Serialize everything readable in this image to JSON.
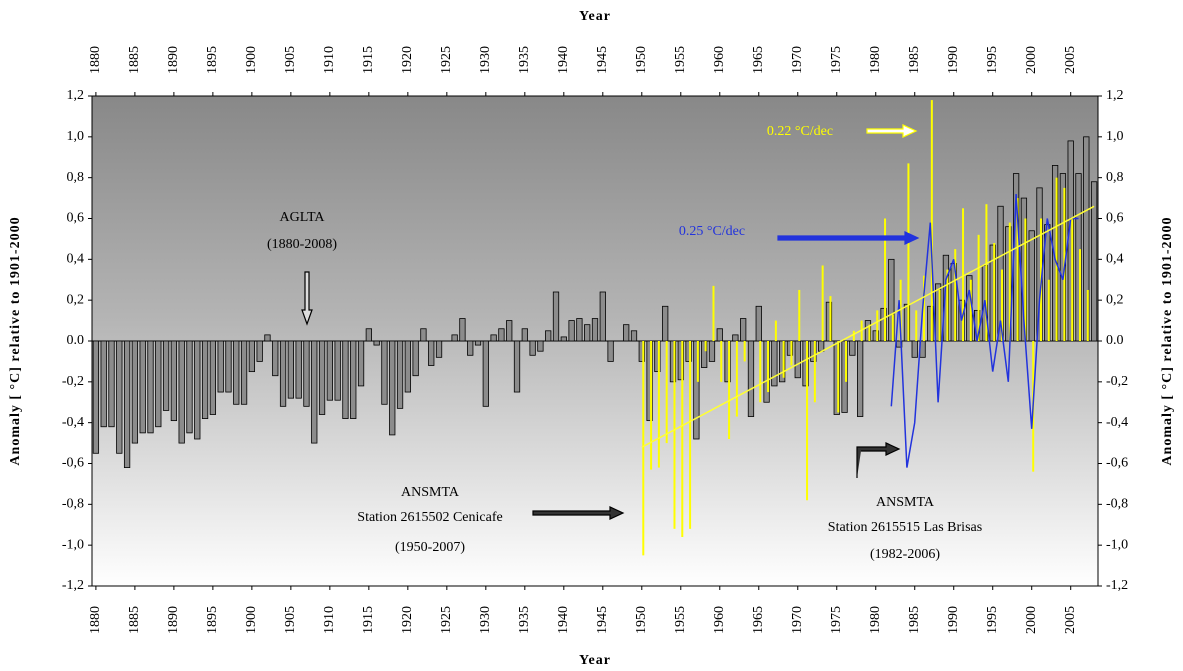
{
  "chart_data": {
    "type": "bar",
    "x_label": "Year",
    "x2_label": "Year",
    "y_label": "Anomaly [ °C] relative to 1901-2000",
    "y2_label": "Anomaly [ °C] relative to 1901-2000",
    "xlim": [
      1879.5,
      2008.5
    ],
    "xticks": [
      1880,
      1885,
      1890,
      1895,
      1900,
      1905,
      1910,
      1915,
      1920,
      1925,
      1930,
      1935,
      1940,
      1945,
      1950,
      1955,
      1960,
      1965,
      1970,
      1975,
      1980,
      1985,
      1990,
      1995,
      2000,
      2005
    ],
    "x2ticks": [
      1880,
      1885,
      1890,
      1895,
      1900,
      1905,
      1910,
      1915,
      1920,
      1925,
      1930,
      1935,
      1940,
      1945,
      1950,
      1955,
      1960,
      1965,
      1970,
      1975,
      1980,
      1985,
      1990,
      1995,
      2000,
      2005
    ],
    "ylim": [
      -1.2,
      1.2
    ],
    "yticks": [
      {
        "value": 1.2,
        "label": "1,2"
      },
      {
        "value": 1.0,
        "label": "1,0"
      },
      {
        "value": 0.8,
        "label": "0,8"
      },
      {
        "value": 0.6,
        "label": "0,6"
      },
      {
        "value": 0.4,
        "label": "0,4"
      },
      {
        "value": 0.2,
        "label": "0,2"
      },
      {
        "value": 0,
        "label": "0.0"
      },
      {
        "value": -0.2,
        "label": "-0,2"
      },
      {
        "value": -0.4,
        "label": "-0,4"
      },
      {
        "value": -0.6,
        "label": "-0,6"
      },
      {
        "value": -0.8,
        "label": "-0,8"
      },
      {
        "value": -1.0,
        "label": "-1,0"
      },
      {
        "value": -1.2,
        "label": "-1,2"
      }
    ],
    "y2lim": [
      -1.2,
      1.2
    ],
    "y2ticks": [
      {
        "value": 1.2,
        "label": "1,2"
      },
      {
        "value": 1.0,
        "label": "1,0"
      },
      {
        "value": 0.8,
        "label": "0,8"
      },
      {
        "value": 0.6,
        "label": "0,6"
      },
      {
        "value": 0.4,
        "label": "0,4"
      },
      {
        "value": 0.2,
        "label": "0,2"
      },
      {
        "value": 0,
        "label": "0.0"
      },
      {
        "value": -0.2,
        "label": "-0,2"
      },
      {
        "value": -0.4,
        "label": "-0,4"
      },
      {
        "value": -0.6,
        "label": "-0,6"
      },
      {
        "value": -0.8,
        "label": "-0,8"
      },
      {
        "value": -1.0,
        "label": "-1,0"
      },
      {
        "value": -1.2,
        "label": "-1,2"
      }
    ],
    "series": [
      {
        "type": "bar",
        "color": "#8c8c8c",
        "x": [
          1880,
          1881,
          1882,
          1883,
          1884,
          1885,
          1886,
          1887,
          1888,
          1889,
          1890,
          1891,
          1892,
          1893,
          1894,
          1895,
          1896,
          1897,
          1898,
          1899,
          1900,
          1901,
          1902,
          1903,
          1904,
          1905,
          1906,
          1907,
          1908,
          1909,
          1910,
          1911,
          1912,
          1913,
          1914,
          1915,
          1916,
          1917,
          1918,
          1919,
          1920,
          1921,
          1922,
          1923,
          1924,
          1925,
          1926,
          1927,
          1928,
          1929,
          1930,
          1931,
          1932,
          1933,
          1934,
          1935,
          1936,
          1937,
          1938,
          1939,
          1940,
          1941,
          1942,
          1943,
          1944,
          1945,
          1946,
          1947,
          1948,
          1949,
          1950,
          1951,
          1952,
          1953,
          1954,
          1955,
          1956,
          1957,
          1958,
          1959,
          1960,
          1961,
          1962,
          1963,
          1964,
          1965,
          1966,
          1967,
          1968,
          1969,
          1970,
          1971,
          1972,
          1973,
          1974,
          1975,
          1976,
          1977,
          1978,
          1979,
          1980,
          1981,
          1982,
          1983,
          1984,
          1985,
          1986,
          1987,
          1988,
          1989,
          1990,
          1991,
          1992,
          1993,
          1994,
          1995,
          1996,
          1997,
          1998,
          1999,
          2000,
          2001,
          2002,
          2003,
          2004,
          2005,
          2006,
          2007,
          2008
        ],
        "values": [
          -0.55,
          -0.42,
          -0.42,
          -0.55,
          -0.62,
          -0.5,
          -0.45,
          -0.45,
          -0.42,
          -0.34,
          -0.39,
          -0.5,
          -0.45,
          -0.48,
          -0.38,
          -0.36,
          -0.25,
          -0.25,
          -0.31,
          -0.31,
          -0.15,
          -0.1,
          0.03,
          -0.17,
          -0.32,
          -0.28,
          -0.28,
          -0.32,
          -0.5,
          -0.36,
          -0.29,
          -0.29,
          -0.38,
          -0.38,
          -0.22,
          0.06,
          -0.02,
          -0.31,
          -0.46,
          -0.33,
          -0.25,
          -0.17,
          0.06,
          -0.12,
          -0.08,
          0.0,
          0.03,
          0.11,
          -0.07,
          -0.02,
          -0.32,
          0.03,
          0.06,
          0.1,
          -0.25,
          0.06,
          -0.07,
          -0.05,
          0.05,
          0.24,
          0.02,
          0.1,
          0.11,
          0.08,
          0.11,
          0.24,
          -0.1,
          0.0,
          0.08,
          0.05,
          -0.1,
          -0.39,
          -0.15,
          0.17,
          -0.2,
          -0.19,
          -0.1,
          -0.48,
          -0.13,
          -0.1,
          0.06,
          -0.2,
          0.03,
          0.11,
          -0.37,
          0.17,
          -0.3,
          -0.22,
          -0.2,
          -0.07,
          -0.18,
          -0.22,
          -0.1,
          -0.05,
          0.19,
          -0.36,
          -0.35,
          -0.07,
          -0.37,
          0.1,
          0.05,
          0.16,
          0.4,
          -0.03,
          0.18,
          -0.08,
          -0.08,
          0.17,
          0.28,
          0.42,
          0.38,
          0.2,
          0.32,
          0.15,
          0.37,
          0.47,
          0.66,
          0.56,
          0.82,
          0.7,
          0.54,
          0.75,
          0.57,
          0.86,
          0.82,
          0.98,
          0.82,
          1.0,
          0.78
        ]
      },
      {
        "type": "bar",
        "color": "#ffff00",
        "x": [
          1950,
          1951,
          1952,
          1953,
          1954,
          1955,
          1956,
          1957,
          1958,
          1959,
          1960,
          1961,
          1962,
          1963,
          1964,
          1965,
          1966,
          1967,
          1968,
          1969,
          1970,
          1971,
          1972,
          1973,
          1974,
          1975,
          1976,
          1977,
          1978,
          1979,
          1980,
          1981,
          1982,
          1983,
          1984,
          1985,
          1986,
          1987,
          1988,
          1989,
          1990,
          1991,
          1992,
          1993,
          1994,
          1995,
          1996,
          1997,
          1998,
          1999,
          2000,
          2001,
          2002,
          2003,
          2004,
          2005,
          2006,
          2007
        ],
        "values": [
          -1.05,
          -0.63,
          -0.62,
          -0.5,
          -0.92,
          -0.96,
          -0.92,
          -0.2,
          -0.05,
          0.27,
          -0.2,
          -0.48,
          -0.37,
          -0.1,
          0.0,
          -0.3,
          -0.25,
          0.1,
          -0.18,
          -0.12,
          0.25,
          -0.78,
          -0.3,
          0.37,
          0.22,
          -0.35,
          -0.2,
          0.05,
          0.1,
          0.08,
          0.15,
          0.6,
          0.13,
          0.3,
          0.87,
          0.15,
          0.32,
          1.18,
          0.25,
          0.35,
          0.45,
          0.65,
          0.3,
          0.52,
          0.67,
          0.48,
          0.35,
          0.58,
          0.7,
          0.6,
          -0.64,
          0.6,
          0.3,
          0.8,
          0.75,
          0.6,
          0.45,
          0.25
        ]
      },
      {
        "type": "line",
        "color": "#2233dd",
        "x": [
          1982,
          1983,
          1984,
          1985,
          1986,
          1987,
          1988,
          1989,
          1990,
          1991,
          1992,
          1993,
          1994,
          1995,
          1996,
          1997,
          1998,
          1999,
          2000,
          2001,
          2002,
          2003,
          2004,
          2005,
          2006
        ],
        "values": [
          -0.32,
          0.2,
          -0.62,
          -0.4,
          0.15,
          0.58,
          -0.3,
          0.3,
          0.4,
          0.1,
          0.25,
          0.0,
          0.2,
          -0.15,
          0.1,
          -0.2,
          0.72,
          0.1,
          -0.43,
          0.2,
          0.6,
          0.4,
          0.3,
          0.6,
          0.6
        ]
      },
      {
        "type": "line",
        "color": "#ffff33",
        "x": [
          1950,
          2008
        ],
        "values": [
          -0.52,
          0.66
        ]
      }
    ],
    "annotations": [
      "AGLTA",
      "(1880-2008)",
      "ANSMTA",
      "Station 2615502 Cenicafe",
      "(1950-2007)",
      "ANSMTA",
      "Station 2615515 Las Brisas",
      "(1982-2006)",
      "0.22 °C/dec",
      "0.25 °C/dec"
    ]
  }
}
